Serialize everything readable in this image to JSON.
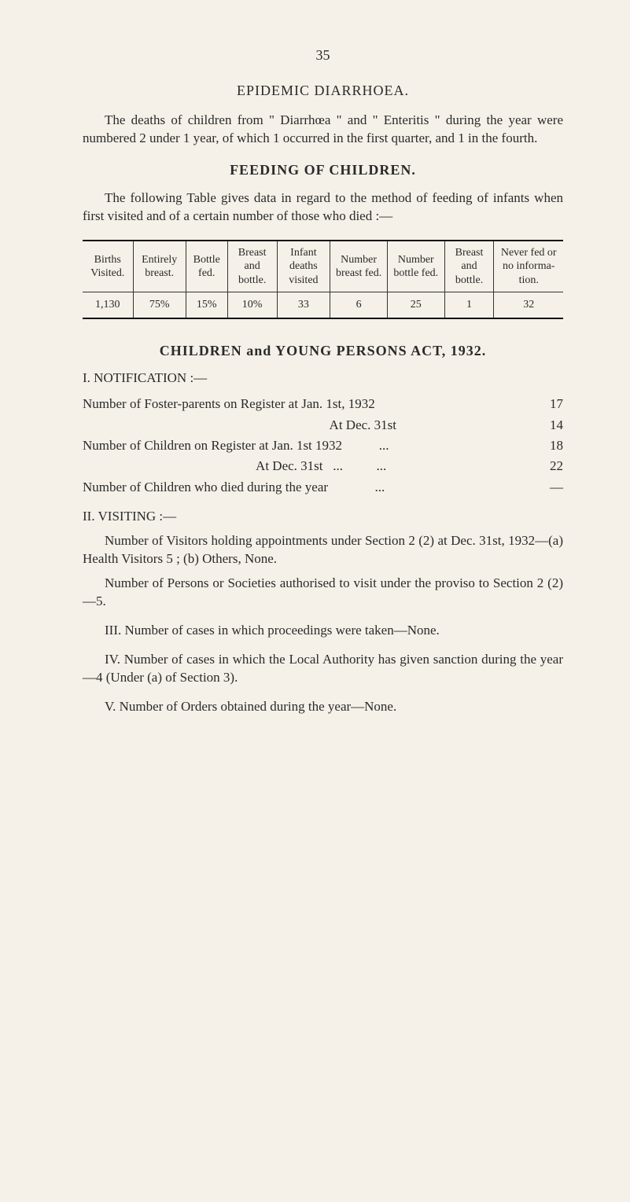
{
  "page_number": "35",
  "sections": {
    "epidemic": {
      "title": "EPIDEMIC DIARRHOEA.",
      "paragraph": "The deaths of children from \" Diarrhœa \" and \" Enteritis \" during the year were numbered 2 under 1 year, of which 1 occurred in the first quarter, and 1 in the fourth."
    },
    "feeding": {
      "title": "FEEDING OF CHILDREN.",
      "intro": "The following Table gives data in regard to the method of feeding of infants when first visited and of a certain number of those who died :—",
      "table": {
        "columns": [
          "Births Visited.",
          "Entirely breast.",
          "Bottle fed.",
          "Breast and bottle.",
          "Infant deaths visited",
          "Number breast fed.",
          "Number bottle fed.",
          "Breast and bottle.",
          "Never fed or no informa-tion."
        ],
        "rows": [
          [
            "1,130",
            "75%",
            "15%",
            "10%",
            "33",
            "6",
            "25",
            "1",
            "32"
          ]
        ]
      }
    },
    "children_act": {
      "title": "CHILDREN and YOUNG PERSONS ACT, 1932.",
      "notification_heading": "I. NOTIFICATION :—",
      "notification_items": [
        {
          "label": "Number of Foster-parents on Register at Jan. 1st, 1932",
          "dots": "...",
          "value": "17"
        },
        {
          "label": "                                                                          At Dec. 31st",
          "dots": "...",
          "value": "14"
        },
        {
          "label": "Number of Children on Register at Jan. 1st 1932           ...",
          "dots": "...",
          "value": "18"
        },
        {
          "label": "                                                    At Dec. 31st   ...          ...",
          "dots": "...",
          "value": "22"
        },
        {
          "label": "Number of Children who died during the year              ...",
          "dots": "...",
          "value": "—"
        }
      ],
      "visiting_heading": "II. VISITING :—",
      "visiting_p1": "Number of Visitors holding appointments under Section 2 (2) at Dec. 31st, 1932—(a) Health Visitors 5 ; (b) Others, None.",
      "visiting_p2": "Number of Persons or Societies authorised to visit under the proviso to Section 2 (2)—5.",
      "section3": "III. Number of cases in which proceedings were taken—None.",
      "section4": "IV. Number of cases in which the Local Authority has given sanction during the year—4 (Under (a) of Section 3).",
      "section5": "V. Number of Orders obtained during the year—None."
    }
  }
}
